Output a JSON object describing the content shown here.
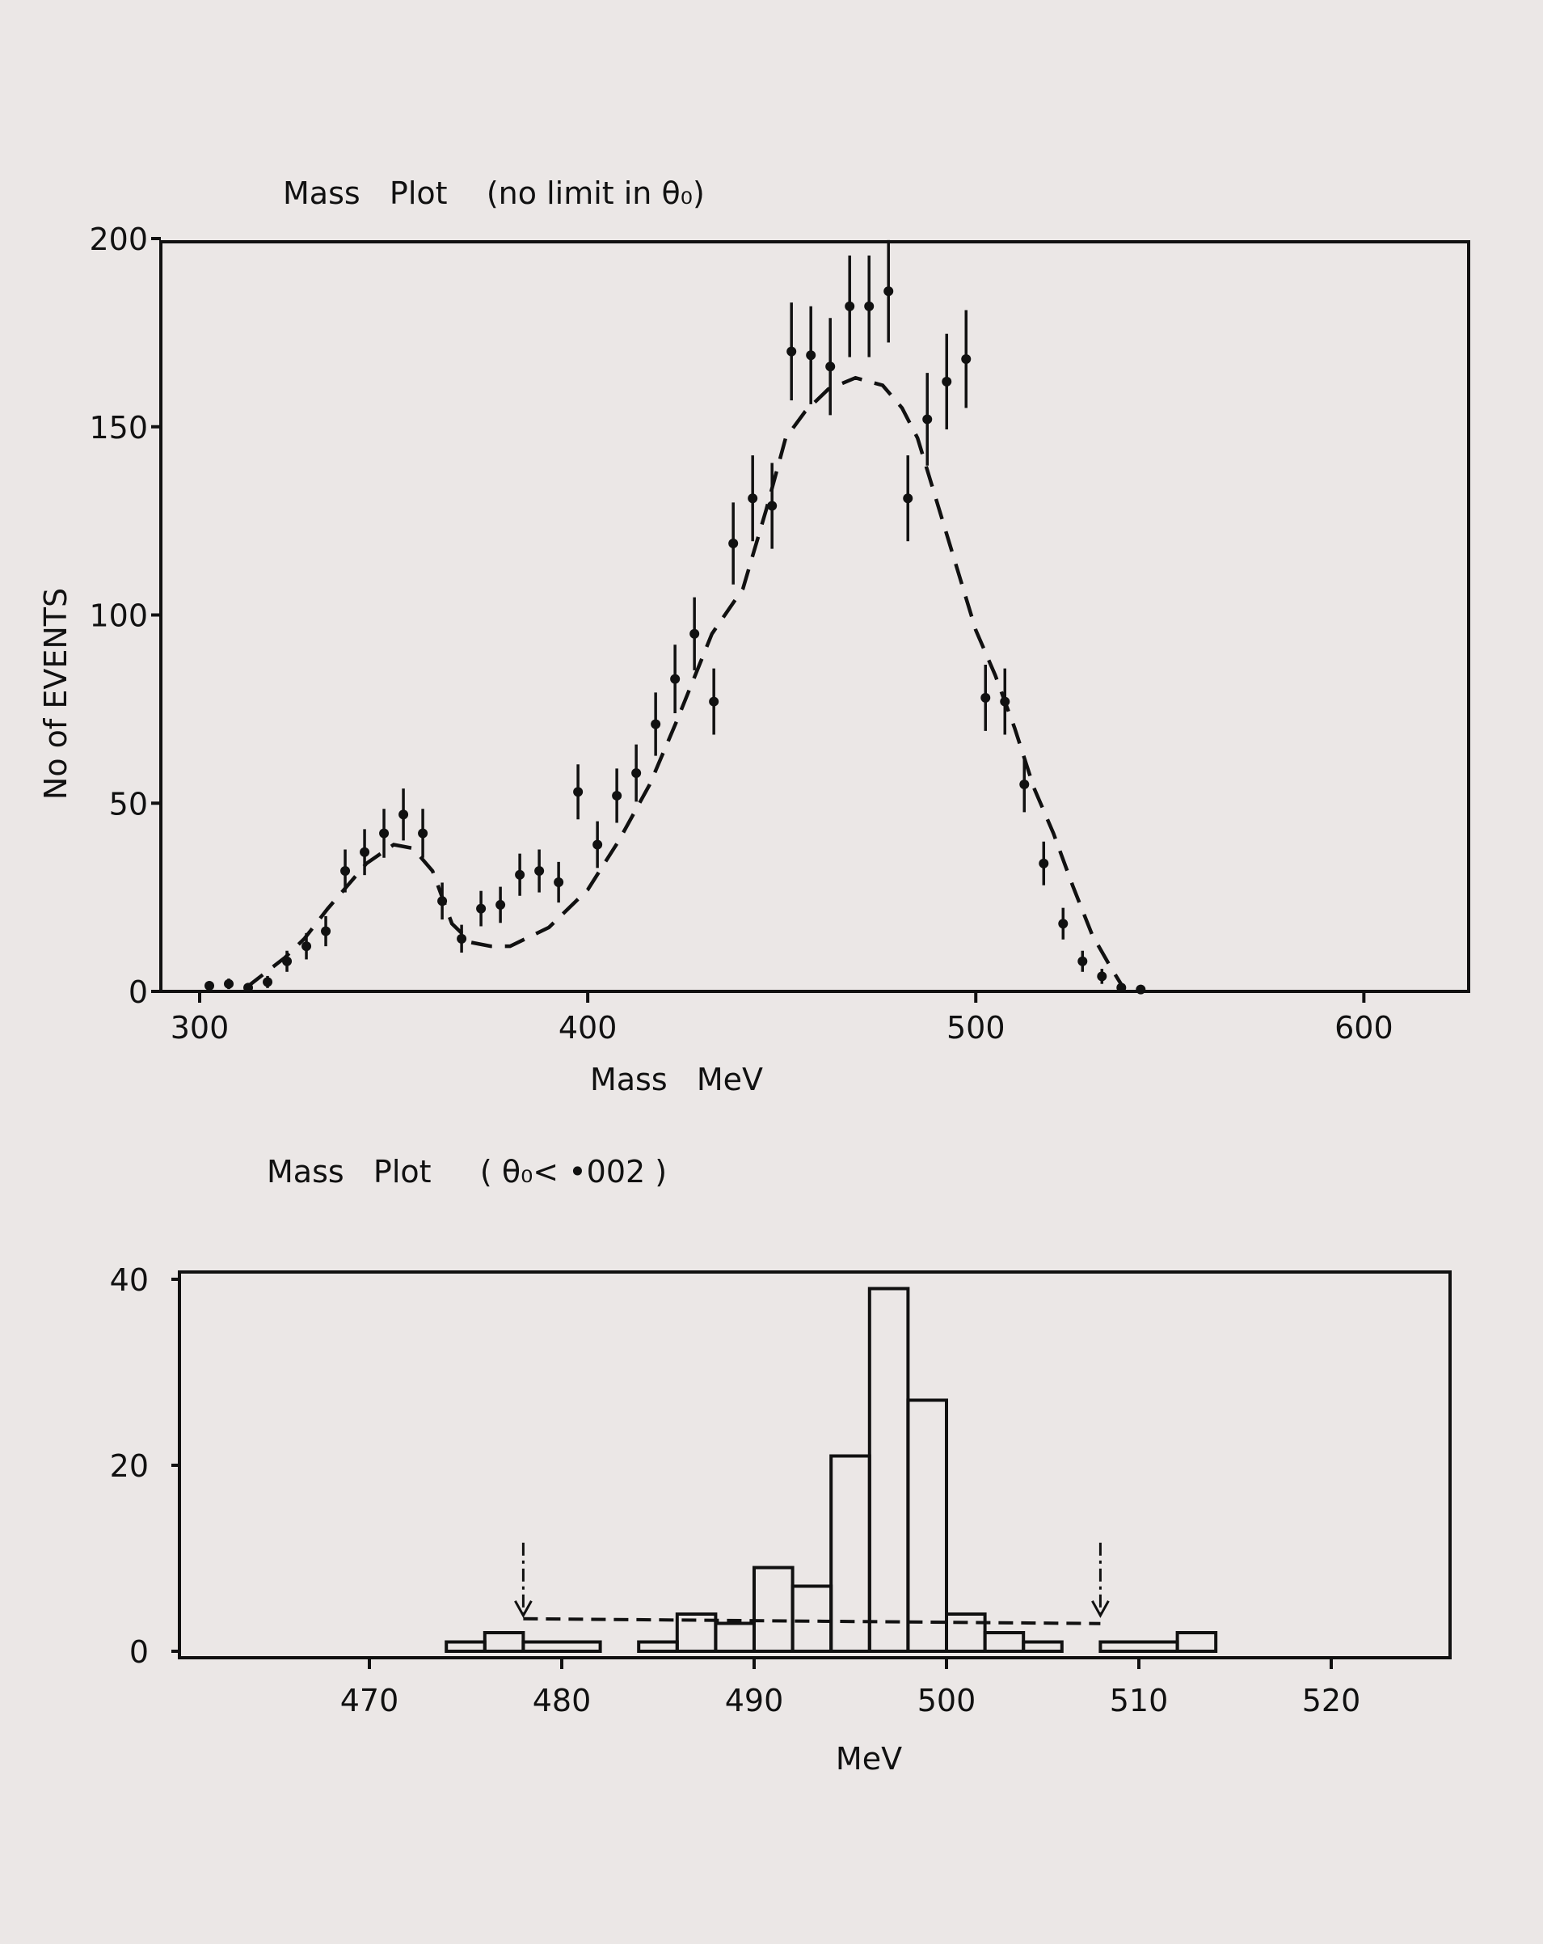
{
  "chart_data": [
    {
      "type": "scatter",
      "title": "Mass   Plot    (no limit in θ₀)",
      "xlabel": "Mass   MeV",
      "ylabel": "No of EVENTS",
      "xlim": [
        290,
        627
      ],
      "ylim": [
        0,
        200
      ],
      "xticks": [
        300,
        400,
        500,
        600
      ],
      "yticks": [
        0,
        50,
        100,
        150,
        200
      ],
      "grid": false,
      "points": {
        "x": [
          302.5,
          307.5,
          312.5,
          317.5,
          322.5,
          327.5,
          332.5,
          337.5,
          342.5,
          347.5,
          352.5,
          357.5,
          362.5,
          367.5,
          372.5,
          377.5,
          382.5,
          387.5,
          392.5,
          397.5,
          402.5,
          407.5,
          412.5,
          417.5,
          422.5,
          427.5,
          432.5,
          437.5,
          442.5,
          447.5,
          452.5,
          457.5,
          462.5,
          467.5,
          472.5,
          477.5,
          482.5,
          487.5,
          492.5,
          497.5,
          502.5,
          507.5,
          512.5,
          517.5,
          522.5,
          527.5,
          532.5,
          537.5,
          542.5
        ],
        "y": [
          1.5,
          2,
          1,
          2.5,
          8,
          12,
          16,
          32,
          37,
          42,
          47,
          42,
          24,
          14,
          22,
          23,
          31,
          32,
          29,
          53,
          39,
          52,
          58,
          71,
          83,
          95,
          77,
          119,
          131,
          129,
          170,
          169,
          166,
          182,
          182,
          186,
          131,
          152,
          162,
          168,
          78,
          77,
          55,
          34,
          18,
          8,
          4,
          1,
          0.5
        ],
        "yerr": [
          1.2,
          1.4,
          1,
          1.6,
          2.8,
          3.5,
          4,
          5.7,
          6.1,
          6.5,
          6.9,
          6.5,
          4.9,
          3.7,
          4.7,
          4.8,
          5.6,
          5.7,
          5.4,
          7.3,
          6.2,
          7.2,
          7.6,
          8.4,
          9.1,
          9.7,
          8.8,
          10.9,
          11.4,
          11.4,
          13,
          13,
          12.9,
          13.5,
          13.5,
          13.6,
          11.4,
          12.3,
          12.7,
          13,
          8.8,
          8.8,
          7.4,
          5.8,
          4.2,
          2.8,
          2,
          1,
          0.7
        ]
      },
      "fit_curve": {
        "style": "dashed",
        "x": [
          312,
          317,
          322,
          327,
          333,
          338,
          343,
          350,
          355,
          360,
          365,
          370,
          375,
          380,
          390,
          400,
          408,
          416,
          423,
          432,
          440,
          446,
          451,
          456,
          462,
          469,
          476,
          481,
          485,
          490,
          495,
          500,
          505,
          510,
          515,
          520,
          525,
          530,
          535,
          538
        ],
        "y": [
          1,
          5,
          9,
          14,
          22,
          28,
          34,
          39,
          38,
          32,
          18,
          13,
          12,
          12,
          17,
          27,
          40,
          55,
          72,
          95,
          107,
          128,
          147,
          154,
          160,
          163,
          161,
          155,
          147,
          130,
          113,
          96,
          84,
          70,
          54,
          42,
          28,
          15,
          6,
          1
        ]
      }
    },
    {
      "type": "bar",
      "subtype": "histogram",
      "title": "Mass   Plot     ( θ₀< •002 )",
      "xlabel": "MeV",
      "ylabel": "",
      "xlim": [
        461,
        526
      ],
      "ylim": [
        0,
        40
      ],
      "xticks": [
        470,
        480,
        490,
        500,
        510,
        520
      ],
      "yticks": [
        0,
        20,
        40
      ],
      "grid": false,
      "bin_edges": [
        474,
        476,
        478,
        482,
        484,
        486,
        488,
        490,
        492,
        494,
        496,
        498,
        500,
        502,
        504,
        506,
        508,
        512,
        514
      ],
      "values": [
        1,
        2,
        1,
        0,
        1,
        4,
        3,
        9,
        7,
        21,
        39,
        27,
        4,
        2,
        1,
        0,
        1,
        2
      ],
      "background_line": {
        "style": "dashed",
        "x": [
          478,
          508
        ],
        "y": 3.5
      },
      "arrows_at": [
        478,
        508
      ]
    }
  ]
}
